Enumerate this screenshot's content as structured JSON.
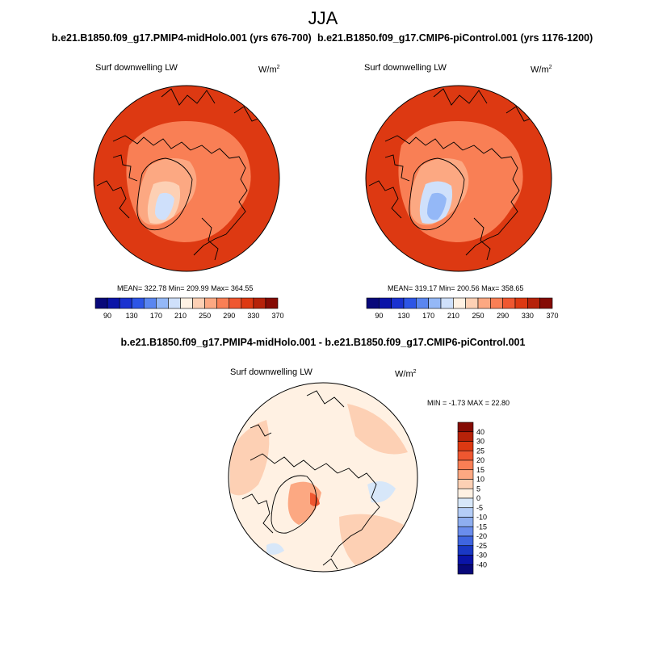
{
  "season": "JJA",
  "panels": [
    {
      "run": "b.e21.B1850.f09_g17.PMIP4-midHolo.001 (yrs 676-700)",
      "variable": "Surf downwelling LW",
      "unit": "W/m",
      "unit_exp": "2",
      "stats": "MEAN= 322.78  Min= 209.99  Max= 364.55"
    },
    {
      "run": "b.e21.B1850.f09_g17.CMIP6-piControl.001 (yrs 1176-1200)",
      "variable": "Surf downwelling LW",
      "unit": "W/m",
      "unit_exp": "2",
      "stats": "MEAN= 319.17  Min= 200.56  Max= 358.65"
    }
  ],
  "abs_colorbar": {
    "colors": [
      "#08087a",
      "#0a14a8",
      "#1a32d0",
      "#2d55e6",
      "#5a86f0",
      "#94b8f7",
      "#cfe0fb",
      "#fff1e3",
      "#fdd0b4",
      "#fca882",
      "#f97f55",
      "#ef5730",
      "#dd3912",
      "#b62209",
      "#850b04"
    ],
    "labels": [
      "90",
      "130",
      "170",
      "210",
      "250",
      "290",
      "330",
      "370"
    ]
  },
  "diff": {
    "title": "b.e21.B1850.f09_g17.PMIP4-midHolo.001 - b.e21.B1850.f09_g17.CMIP6-piControl.001",
    "variable": "Surf downwelling LW",
    "unit": "W/m",
    "unit_exp": "2",
    "stats": "MIN =  -1.73 MAX =  22.80"
  },
  "diff_colorbar": {
    "colors_top_to_bottom": [
      "#850b04",
      "#b62209",
      "#dd3912",
      "#ef5730",
      "#f97f55",
      "#fca882",
      "#fdd0b4",
      "#fff1e3",
      "#d7e7f9",
      "#b4cdf7",
      "#8eaef0",
      "#6a8ded",
      "#3f65e0",
      "#1a38c4",
      "#0a14a8",
      "#08087a"
    ],
    "labels_top_to_bottom": [
      "40",
      "30",
      "25",
      "20",
      "15",
      "10",
      "5",
      "0",
      "-5",
      "-10",
      "-15",
      "-20",
      "-25",
      "-30",
      "-40"
    ]
  }
}
